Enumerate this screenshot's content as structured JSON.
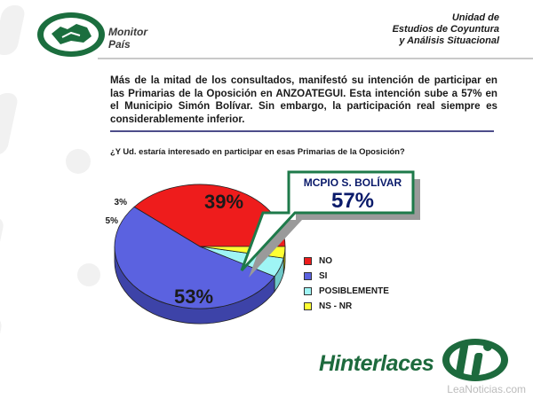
{
  "header": {
    "brand_line1": "Monitor",
    "brand_line2": "País",
    "unit_lines": [
      "Unidad de",
      "Estudios de Coyuntura",
      "y Análisis Situacional"
    ]
  },
  "summary": "Más de la mitad de los consultados, manifestó su intención de participar en las Primarias de la Oposición en ANZOATEGUI. Esta intención sube a 57% en el Municipio Simón Bolívar. Sin embargo, la participación real siempre es considerablemente inferior.",
  "question": "¿Y Ud. estaría interesado en participar en esas Primarias de la Oposición?",
  "callout": {
    "title": "MCPIO S. BOLÍVAR",
    "value": "57%"
  },
  "footer": {
    "brand": "Hinterlaces",
    "watermark": "LeaNoticias.com"
  },
  "colors": {
    "no": "#ee1c1c",
    "si": "#5b62e0",
    "posiblemente": "#9ff5f5",
    "ns_nr": "#ffff33",
    "brand_green": "#1d6a3d"
  },
  "chart_data": {
    "type": "pie",
    "title": "",
    "slices": [
      {
        "label": "NO",
        "value": 39,
        "display": "39%"
      },
      {
        "label": "SI",
        "value": 53,
        "display": "53%"
      },
      {
        "label": "POSIBLEMENTE",
        "value": 5,
        "display": "5%"
      },
      {
        "label": "NS - NR",
        "value": 3,
        "display": "3%"
      }
    ],
    "legend_position": "bottom-right"
  }
}
